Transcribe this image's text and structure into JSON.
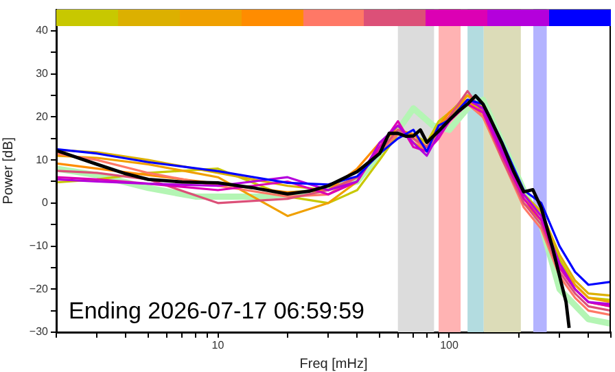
{
  "chart_data": {
    "type": "line",
    "xlabel": "Freq [mHz]",
    "ylabel": "Power [dB]",
    "log": "x",
    "annotations": [
      "Ending 2026-07-17 06:59:59"
    ],
    "xlim": [
      2,
      500
    ],
    "xticks": [
      {
        "value": 2,
        "label": null
      },
      {
        "value": 3,
        "label": null
      },
      {
        "value": 4,
        "label": null
      },
      {
        "value": 5,
        "label": null
      },
      {
        "value": 6,
        "label": null
      },
      {
        "value": 7,
        "label": null
      },
      {
        "value": 8,
        "label": null
      },
      {
        "value": 9,
        "label": null
      },
      10,
      {
        "value": 20,
        "label": null
      },
      {
        "value": 30,
        "label": null
      },
      {
        "value": 40,
        "label": null
      },
      {
        "value": 50,
        "label": null
      },
      {
        "value": 60,
        "label": null
      },
      {
        "value": 70,
        "label": null
      },
      {
        "value": 80,
        "label": null
      },
      {
        "value": 90,
        "label": null
      },
      100,
      {
        "value": 200,
        "label": null
      },
      {
        "value": 300,
        "label": null
      },
      {
        "value": 400,
        "label": null
      },
      {
        "value": 500,
        "label": null
      }
    ],
    "ylim": [
      -30,
      45
    ],
    "yticks": [
      {
        "value": -30,
        "label": "−30"
      },
      {
        "value": -25,
        "label": null
      },
      {
        "value": -20,
        "label": "−20"
      },
      {
        "value": -15,
        "label": null
      },
      {
        "value": -10,
        "label": "−10"
      },
      {
        "value": -5,
        "label": null
      },
      0,
      {
        "value": 5,
        "label": null
      },
      10,
      {
        "value": 15,
        "label": null
      },
      20,
      {
        "value": 25,
        "label": null
      },
      30,
      {
        "value": 35,
        "label": null
      },
      40
    ],
    "bands": [
      {
        "axis": "x",
        "from": 60,
        "to": 86,
        "color": "#dcdcdc"
      },
      {
        "axis": "x",
        "from": 90,
        "to": 112,
        "color": "#ffb3b3"
      },
      {
        "axis": "x",
        "from": 120,
        "to": 141,
        "color": "#b3dce0"
      },
      {
        "axis": "x",
        "from": 141,
        "to": 204,
        "color": "#dcdcb8"
      },
      {
        "axis": "x",
        "from": 231,
        "to": 264,
        "color": "#b3b3ff"
      }
    ],
    "x": [
      2,
      3,
      5,
      10,
      20,
      30,
      40,
      50,
      60,
      70,
      80,
      90,
      100,
      120,
      140,
      170,
      210,
      250,
      300,
      350,
      400,
      500
    ],
    "series": [
      {
        "color": "#b4f5b4",
        "x": [
          2,
          3,
          5,
          8,
          15,
          25,
          40,
          55,
          70,
          85,
          100,
          120,
          140,
          170,
          210,
          250,
          300,
          400,
          500
        ],
        "values": [
          8,
          6.5,
          3.5,
          1.5,
          1.5,
          2.5,
          5,
          14,
          22,
          18,
          17,
          22,
          24,
          14,
          3,
          -5,
          -20,
          -27,
          -28
        ]
      },
      {
        "color": "#c8c800",
        "values": [
          4.8,
          5.5,
          7,
          8,
          1.5,
          0,
          3,
          10,
          16,
          16,
          14,
          19,
          21,
          25,
          22,
          12,
          2,
          -2,
          -13,
          -19,
          -22,
          -22.5
        ]
      },
      {
        "color": "#dcb000",
        "values": [
          12.3,
          11.8,
          10,
          7,
          4,
          3,
          6,
          12,
          16,
          15,
          13,
          18,
          20,
          24,
          21,
          12,
          2,
          -2,
          -12,
          -18,
          -21,
          -21.5
        ]
      },
      {
        "color": "#f0a000",
        "values": [
          11,
          10.5,
          9,
          6,
          -3,
          0,
          5,
          13,
          18,
          14,
          12,
          17,
          20,
          25,
          22,
          11,
          1,
          -3,
          -14,
          -19,
          -22,
          -23
        ]
      },
      {
        "color": "#ff8c00",
        "values": [
          9.2,
          8,
          6.5,
          4.5,
          2.5,
          3,
          8,
          14,
          17,
          16,
          13,
          18,
          21,
          24,
          20,
          10,
          0,
          -4,
          -15,
          -20,
          -23,
          -24
        ]
      },
      {
        "color": "#ff7866",
        "values": [
          11.5,
          10,
          7,
          4,
          1.5,
          2,
          6,
          12,
          16,
          15,
          12,
          16,
          19,
          23,
          20,
          10,
          -1,
          -6,
          -17,
          -22,
          -25,
          -26
        ]
      },
      {
        "color": "#dc5078",
        "values": [
          7.5,
          7,
          5.5,
          0,
          1,
          3,
          6,
          12,
          17,
          15,
          13,
          17,
          20,
          26,
          21,
          10,
          0,
          -5,
          -16,
          -21,
          -24,
          -25
        ]
      },
      {
        "color": "#dc00b4",
        "values": [
          6,
          5.5,
          4.5,
          3,
          5,
          2,
          5,
          13,
          19,
          13,
          12,
          15,
          19,
          23,
          21,
          11,
          1,
          -4,
          -15,
          -20,
          -23,
          -24
        ]
      },
      {
        "color": "#b400dc",
        "values": [
          5.5,
          5,
          4.5,
          4,
          6,
          3,
          5,
          14,
          18,
          14,
          11,
          16,
          19,
          24,
          22,
          12,
          2,
          -3,
          -14,
          -20,
          -23,
          -23.5
        ]
      },
      {
        "color": "#0000ff",
        "values": [
          12.5,
          11.5,
          9.5,
          7.4,
          4.7,
          4.3,
          6.2,
          11.5,
          15,
          17,
          12,
          18,
          19.3,
          24,
          23,
          14,
          3,
          0,
          -10,
          -16,
          -19,
          -18.3
        ]
      },
      {
        "color": "#000000",
        "x": [
          2,
          3,
          4,
          5,
          7,
          10,
          14,
          20,
          25,
          30,
          40,
          50,
          55,
          60,
          65,
          70,
          75,
          80,
          90,
          100,
          110,
          120,
          130,
          140,
          150,
          170,
          190,
          210,
          230,
          250,
          280,
          320,
          330
        ],
        "values": [
          12.2,
          9,
          6.8,
          5.5,
          4.9,
          4.7,
          3.6,
          2.1,
          2.8,
          4,
          7.3,
          11.5,
          16.2,
          16.2,
          15.5,
          15.6,
          17,
          14.1,
          16.7,
          19.3,
          21.4,
          23,
          24.9,
          23,
          19.8,
          13.6,
          7.3,
          2.6,
          3.1,
          -1.1,
          -10.5,
          -23,
          -29
        ]
      }
    ]
  }
}
